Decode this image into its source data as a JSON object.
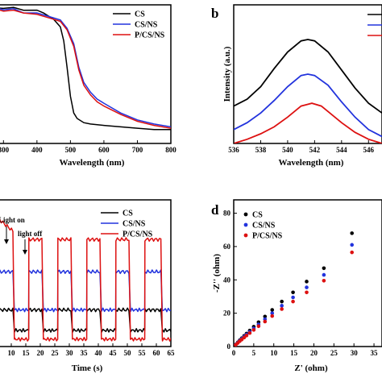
{
  "colors": {
    "CS": "#000000",
    "CS/NS": "#2233dd",
    "P/CS/NS": "#dd1111"
  },
  "chart_data": [
    {
      "panel": "a",
      "type": "line",
      "xlabel": "Wavelength (nm)",
      "ylabel": "",
      "xlim": [
        280,
        800
      ],
      "ylim": [
        0,
        1.0
      ],
      "xticks": [
        300,
        400,
        500,
        600,
        700,
        800
      ],
      "legend": "top-right",
      "series": [
        {
          "name": "CS",
          "x": [
            280,
            300,
            330,
            360,
            400,
            420,
            450,
            470,
            480,
            490,
            500,
            510,
            520,
            540,
            560,
            600,
            650,
            700,
            750,
            800
          ],
          "y": [
            0.98,
            0.97,
            0.97,
            0.96,
            0.95,
            0.94,
            0.9,
            0.83,
            0.74,
            0.55,
            0.34,
            0.22,
            0.18,
            0.15,
            0.14,
            0.13,
            0.12,
            0.11,
            0.1,
            0.1
          ]
        },
        {
          "name": "CS/NS",
          "x": [
            280,
            300,
            330,
            360,
            400,
            440,
            470,
            490,
            510,
            525,
            540,
            560,
            580,
            600,
            650,
            700,
            750,
            800
          ],
          "y": [
            0.98,
            0.96,
            0.96,
            0.94,
            0.93,
            0.91,
            0.88,
            0.83,
            0.72,
            0.55,
            0.44,
            0.37,
            0.32,
            0.29,
            0.22,
            0.17,
            0.14,
            0.12
          ]
        },
        {
          "name": "P/CS/NS",
          "x": [
            280,
            300,
            330,
            360,
            400,
            440,
            470,
            490,
            510,
            525,
            540,
            560,
            580,
            600,
            650,
            700,
            750,
            800
          ],
          "y": [
            0.97,
            0.95,
            0.95,
            0.94,
            0.92,
            0.9,
            0.87,
            0.82,
            0.7,
            0.53,
            0.42,
            0.35,
            0.3,
            0.27,
            0.21,
            0.16,
            0.13,
            0.11
          ]
        }
      ]
    },
    {
      "panel": "b",
      "type": "line",
      "xlabel": "Wavelength (nm)",
      "ylabel": "Intensity (a.u.)",
      "xlim": [
        536,
        547
      ],
      "ylim": [
        0,
        1.0
      ],
      "xticks": [
        536,
        538,
        540,
        542,
        544,
        546
      ],
      "legend": "top-right",
      "series": [
        {
          "name": "CS",
          "x": [
            536,
            537,
            538,
            539,
            540,
            541,
            541.5,
            542,
            543,
            544,
            545,
            546,
            547
          ],
          "y": [
            0.27,
            0.32,
            0.41,
            0.54,
            0.66,
            0.74,
            0.75,
            0.74,
            0.66,
            0.53,
            0.4,
            0.29,
            0.22
          ]
        },
        {
          "name": "CS/NS",
          "x": [
            536,
            537,
            538,
            539,
            540,
            541,
            541.5,
            542,
            543,
            544,
            545,
            546,
            547
          ],
          "y": [
            0.1,
            0.15,
            0.22,
            0.31,
            0.41,
            0.49,
            0.5,
            0.49,
            0.42,
            0.3,
            0.19,
            0.1,
            0.05
          ]
        },
        {
          "name": "P/CS/NS",
          "x": [
            536,
            537,
            538,
            539,
            540,
            541,
            541.8,
            542.5,
            543,
            544,
            545,
            546,
            547
          ],
          "y": [
            0.0,
            0.03,
            0.07,
            0.12,
            0.19,
            0.27,
            0.29,
            0.27,
            0.23,
            0.15,
            0.08,
            0.03,
            0.0
          ]
        }
      ]
    },
    {
      "panel": "c",
      "type": "line",
      "xlabel": "Time (s)",
      "ylabel": "",
      "xlim": [
        5,
        65
      ],
      "ylim": [
        0,
        1.0
      ],
      "xticks": [
        5,
        10,
        15,
        20,
        25,
        30,
        35,
        40,
        45,
        50,
        55,
        60,
        65
      ],
      "legend": "top-right",
      "annotations": [
        "Light on",
        "light off"
      ],
      "on_intervals": [
        [
          5,
          11
        ],
        [
          16,
          21
        ],
        [
          26,
          31
        ],
        [
          36,
          41
        ],
        [
          46,
          51
        ],
        [
          56,
          62
        ]
      ],
      "series": [
        {
          "name": "CS",
          "on_level": 0.25,
          "off_level": 0.11
        },
        {
          "name": "CS/NS",
          "on_level": 0.51,
          "off_level": 0.25
        },
        {
          "name": "P/CS/NS",
          "on_level": 0.73,
          "off_level": 0.05,
          "first_on_level": 0.88
        }
      ]
    },
    {
      "panel": "d",
      "type": "scatter",
      "xlabel": "Z' (ohm)",
      "ylabel": "-Z'' (ohm)",
      "xlim": [
        0,
        37
      ],
      "ylim": [
        0,
        88
      ],
      "xticks": [
        0,
        5,
        10,
        15,
        20,
        25,
        30,
        35
      ],
      "yticks": [
        0,
        20,
        40,
        60,
        80
      ],
      "legend": "top-left",
      "series": [
        {
          "name": "CS",
          "x": [
            0.5,
            1,
            1.5,
            2,
            2.6,
            3.2,
            4,
            5,
            6.2,
            7.8,
            9.6,
            12,
            14.8,
            18.2,
            22.5,
            29.5
          ],
          "y": [
            1.2,
            2.5,
            3.8,
            5,
            6.4,
            7.8,
            9.6,
            11.9,
            14.6,
            18,
            22,
            27,
            32.5,
            39,
            47,
            68
          ]
        },
        {
          "name": "CS/NS",
          "x": [
            0.5,
            1,
            1.5,
            2,
            2.6,
            3.2,
            4,
            5,
            6.2,
            7.8,
            9.6,
            12,
            14.8,
            18.2,
            22.5,
            29.5
          ],
          "y": [
            1.1,
            2.3,
            3.5,
            4.6,
            5.9,
            7.2,
            8.8,
            10.9,
            13.3,
            16.4,
            20,
            24.5,
            29.5,
            35.5,
            43,
            61
          ]
        },
        {
          "name": "P/CS/NS",
          "x": [
            0.5,
            1,
            1.5,
            2,
            2.6,
            3.2,
            4,
            5,
            6.2,
            7.8,
            9.6,
            12,
            14.8,
            18.2,
            22.5,
            29.5
          ],
          "y": [
            1,
            2.1,
            3.2,
            4.2,
            5.4,
            6.6,
            8.1,
            10,
            12.2,
            15,
            18.3,
            22.5,
            27,
            32.5,
            39.5,
            56.5
          ]
        }
      ]
    }
  ],
  "panel_labels": {
    "b": "b",
    "d": "d"
  }
}
